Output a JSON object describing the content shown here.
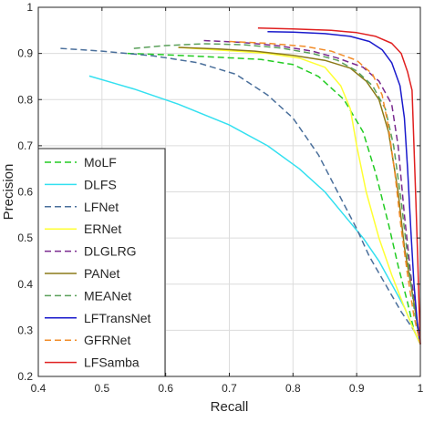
{
  "chart_data": {
    "type": "line",
    "title": "",
    "xlabel": "Recall",
    "ylabel": "Precision",
    "xlim": [
      0.4,
      1.0
    ],
    "ylim": [
      0.2,
      1.0
    ],
    "xticks": [
      0.4,
      0.5,
      0.6,
      0.7,
      0.8,
      0.9,
      1
    ],
    "yticks": [
      0.2,
      0.3,
      0.4,
      0.5,
      0.6,
      0.7,
      0.8,
      0.9,
      1
    ],
    "xtick_labels": [
      "0.4",
      "0.5",
      "0.6",
      "0.7",
      "0.8",
      "0.9",
      "1"
    ],
    "ytick_labels": [
      "0.2",
      "0.3",
      "0.4",
      "0.5",
      "0.6",
      "0.7",
      "0.8",
      "0.9",
      "1"
    ],
    "grid": true,
    "legend_position": "bottom-left",
    "series": [
      {
        "name": "MoLF",
        "color": "#22cc22",
        "dash": true,
        "points": [
          [
            0.54,
            0.9
          ],
          [
            0.6,
            0.897
          ],
          [
            0.68,
            0.892
          ],
          [
            0.75,
            0.887
          ],
          [
            0.8,
            0.876
          ],
          [
            0.84,
            0.85
          ],
          [
            0.88,
            0.8
          ],
          [
            0.91,
            0.73
          ],
          [
            0.93,
            0.64
          ],
          [
            0.95,
            0.53
          ],
          [
            0.965,
            0.44
          ],
          [
            0.98,
            0.36
          ],
          [
            0.99,
            0.3
          ],
          [
            1.0,
            0.27
          ]
        ]
      },
      {
        "name": "DLFS",
        "color": "#33e0f0",
        "dash": false,
        "points": [
          [
            0.48,
            0.851
          ],
          [
            0.55,
            0.823
          ],
          [
            0.62,
            0.79
          ],
          [
            0.7,
            0.745
          ],
          [
            0.76,
            0.7
          ],
          [
            0.81,
            0.65
          ],
          [
            0.85,
            0.6
          ],
          [
            0.88,
            0.55
          ],
          [
            0.91,
            0.5
          ],
          [
            0.935,
            0.45
          ],
          [
            0.955,
            0.4
          ],
          [
            0.975,
            0.35
          ],
          [
            0.99,
            0.3
          ],
          [
            1.0,
            0.27
          ]
        ]
      },
      {
        "name": "LFNet",
        "color": "#4a6f9b",
        "dash": true,
        "points": [
          [
            0.435,
            0.911
          ],
          [
            0.5,
            0.905
          ],
          [
            0.58,
            0.895
          ],
          [
            0.65,
            0.88
          ],
          [
            0.71,
            0.855
          ],
          [
            0.76,
            0.81
          ],
          [
            0.8,
            0.76
          ],
          [
            0.84,
            0.68
          ],
          [
            0.87,
            0.6
          ],
          [
            0.9,
            0.52
          ],
          [
            0.92,
            0.46
          ],
          [
            0.945,
            0.4
          ],
          [
            0.97,
            0.34
          ],
          [
            0.99,
            0.3
          ],
          [
            1.0,
            0.27
          ]
        ]
      },
      {
        "name": "ERNet",
        "color": "#ffff33",
        "dash": false,
        "points": [
          [
            0.62,
            0.913
          ],
          [
            0.7,
            0.906
          ],
          [
            0.76,
            0.9
          ],
          [
            0.81,
            0.89
          ],
          [
            0.85,
            0.87
          ],
          [
            0.875,
            0.83
          ],
          [
            0.89,
            0.78
          ],
          [
            0.9,
            0.7
          ],
          [
            0.915,
            0.6
          ],
          [
            0.935,
            0.5
          ],
          [
            0.955,
            0.42
          ],
          [
            0.975,
            0.35
          ],
          [
            0.99,
            0.3
          ],
          [
            1.0,
            0.27
          ]
        ]
      },
      {
        "name": "DLGLRG",
        "color": "#7a2a8f",
        "dash": true,
        "points": [
          [
            0.66,
            0.928
          ],
          [
            0.72,
            0.924
          ],
          [
            0.78,
            0.916
          ],
          [
            0.83,
            0.905
          ],
          [
            0.87,
            0.89
          ],
          [
            0.91,
            0.87
          ],
          [
            0.935,
            0.84
          ],
          [
            0.955,
            0.79
          ],
          [
            0.965,
            0.7
          ],
          [
            0.975,
            0.55
          ],
          [
            0.985,
            0.42
          ],
          [
            0.995,
            0.32
          ],
          [
            1.0,
            0.27
          ]
        ]
      },
      {
        "name": "PANet",
        "color": "#8c7a18",
        "dash": false,
        "points": [
          [
            0.62,
            0.913
          ],
          [
            0.68,
            0.91
          ],
          [
            0.74,
            0.905
          ],
          [
            0.8,
            0.896
          ],
          [
            0.85,
            0.885
          ],
          [
            0.89,
            0.868
          ],
          [
            0.915,
            0.84
          ],
          [
            0.935,
            0.8
          ],
          [
            0.95,
            0.73
          ],
          [
            0.965,
            0.6
          ],
          [
            0.975,
            0.48
          ],
          [
            0.99,
            0.36
          ],
          [
            1.0,
            0.27
          ]
        ]
      },
      {
        "name": "MEANet",
        "color": "#5aa05a",
        "dash": true,
        "points": [
          [
            0.55,
            0.911
          ],
          [
            0.6,
            0.917
          ],
          [
            0.66,
            0.921
          ],
          [
            0.72,
            0.919
          ],
          [
            0.78,
            0.912
          ],
          [
            0.83,
            0.9
          ],
          [
            0.87,
            0.885
          ],
          [
            0.9,
            0.862
          ],
          [
            0.925,
            0.83
          ],
          [
            0.945,
            0.78
          ],
          [
            0.958,
            0.7
          ],
          [
            0.97,
            0.58
          ],
          [
            0.98,
            0.46
          ],
          [
            0.99,
            0.35
          ],
          [
            1.0,
            0.27
          ]
        ]
      },
      {
        "name": "LFTransNet",
        "color": "#1a1acc",
        "dash": false,
        "points": [
          [
            0.76,
            0.947
          ],
          [
            0.8,
            0.946
          ],
          [
            0.85,
            0.943
          ],
          [
            0.89,
            0.937
          ],
          [
            0.92,
            0.926
          ],
          [
            0.94,
            0.908
          ],
          [
            0.955,
            0.88
          ],
          [
            0.968,
            0.83
          ],
          [
            0.975,
            0.76
          ],
          [
            0.98,
            0.65
          ],
          [
            0.985,
            0.52
          ],
          [
            0.99,
            0.4
          ],
          [
            0.995,
            0.32
          ],
          [
            1.0,
            0.27
          ]
        ]
      },
      {
        "name": "GFRNet",
        "color": "#f28c28",
        "dash": true,
        "points": [
          [
            0.7,
            0.926
          ],
          [
            0.76,
            0.922
          ],
          [
            0.82,
            0.915
          ],
          [
            0.86,
            0.905
          ],
          [
            0.9,
            0.885
          ],
          [
            0.925,
            0.855
          ],
          [
            0.94,
            0.81
          ],
          [
            0.95,
            0.74
          ],
          [
            0.96,
            0.64
          ],
          [
            0.97,
            0.52
          ],
          [
            0.98,
            0.42
          ],
          [
            0.99,
            0.33
          ],
          [
            1.0,
            0.27
          ]
        ]
      },
      {
        "name": "LFSamba",
        "color": "#e02020",
        "dash": false,
        "points": [
          [
            0.745,
            0.955
          ],
          [
            0.8,
            0.953
          ],
          [
            0.86,
            0.95
          ],
          [
            0.9,
            0.945
          ],
          [
            0.93,
            0.937
          ],
          [
            0.955,
            0.922
          ],
          [
            0.97,
            0.9
          ],
          [
            0.98,
            0.86
          ],
          [
            0.987,
            0.82
          ],
          [
            0.99,
            0.7
          ],
          [
            0.993,
            0.58
          ],
          [
            0.996,
            0.45
          ],
          [
            0.998,
            0.35
          ],
          [
            1.0,
            0.27
          ]
        ]
      }
    ]
  }
}
